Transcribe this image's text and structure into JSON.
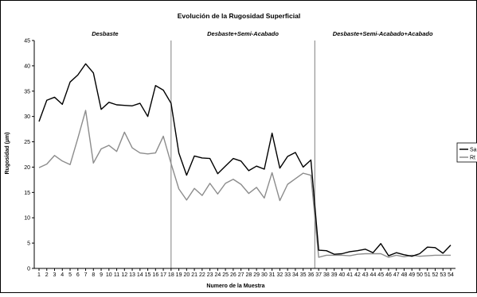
{
  "chart_data": {
    "type": "line",
    "title": "Evolución de la Rugosidad Superficial",
    "xlabel": "Numero de la Muestra",
    "ylabel": "Rugosidad (µm)",
    "x": [
      1,
      2,
      3,
      4,
      5,
      6,
      7,
      8,
      9,
      10,
      11,
      12,
      13,
      14,
      15,
      16,
      17,
      18,
      19,
      20,
      21,
      22,
      23,
      24,
      25,
      26,
      27,
      28,
      29,
      30,
      31,
      32,
      33,
      34,
      35,
      36,
      37,
      38,
      39,
      40,
      41,
      42,
      43,
      44,
      45,
      46,
      47,
      48,
      49,
      50,
      51,
      52,
      53,
      54
    ],
    "ylim": [
      0,
      45
    ],
    "yticks": [
      0,
      5,
      10,
      15,
      20,
      25,
      30,
      35,
      40,
      45
    ],
    "grid": "vertical section dividers",
    "legend_position": "right",
    "sections": [
      {
        "label": "Desbaste",
        "from": 1,
        "to": 18
      },
      {
        "label": "Desbaste+Semi-Acabado",
        "from": 18,
        "to": 36.5
      },
      {
        "label": "Desbaste+Semi-Acabado+Acabado",
        "from": 36.5,
        "to": 54
      }
    ],
    "series": [
      {
        "name": "Sa",
        "color": "#000000",
        "values": [
          29,
          33.2,
          33.8,
          32.4,
          36.8,
          38.2,
          40.4,
          38.6,
          31.4,
          32.8,
          32.3,
          32.2,
          32.1,
          32.6,
          30,
          36.1,
          35.2,
          32.6,
          22.8,
          18.4,
          22.2,
          21.8,
          21.7,
          18.7,
          20.2,
          21.7,
          21.2,
          19.3,
          20.2,
          19.6,
          26.7,
          19.8,
          22.1,
          22.9,
          20,
          21.4,
          3.6,
          3.5,
          2.8,
          2.9,
          3.3,
          3.5,
          3.8,
          3.1,
          4.9,
          2.5,
          3.1,
          2.7,
          2.4,
          2.9,
          4.2,
          4.1,
          3,
          4.6
        ]
      },
      {
        "name": "Rt",
        "color": "#8c8c8c",
        "values": [
          19.9,
          20.6,
          22.3,
          21.2,
          20.5,
          25.7,
          31.2,
          20.8,
          23.6,
          24.3,
          23.1,
          26.9,
          23.8,
          22.8,
          22.6,
          22.8,
          26.1,
          20.7,
          15.7,
          13.5,
          15.8,
          14.4,
          16.8,
          14.7,
          16.8,
          17.6,
          16.6,
          14.8,
          16,
          13.9,
          18.9,
          13.4,
          16.6,
          17.7,
          18.8,
          18.4,
          2.2,
          2.6,
          2.6,
          2.6,
          2.5,
          2.8,
          2.9,
          2.9,
          2.9,
          2.2,
          2.6,
          2.3,
          2.6,
          2.4,
          2.5,
          2.6,
          2.6,
          2.6
        ]
      }
    ]
  }
}
